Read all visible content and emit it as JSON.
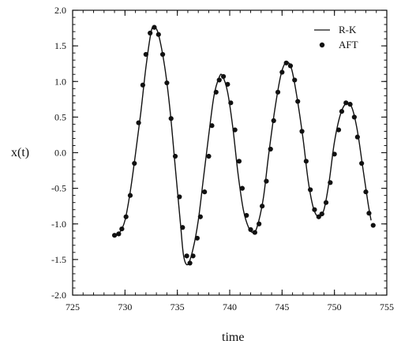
{
  "chart_data": {
    "type": "line",
    "title": "",
    "xlabel": "time",
    "ylabel": "x(t)",
    "xlim": [
      725,
      755
    ],
    "ylim": [
      -2.0,
      2.0
    ],
    "x_ticks": [
      725,
      730,
      735,
      740,
      745,
      750,
      755
    ],
    "y_ticks": [
      2.0,
      1.5,
      1.0,
      0.5,
      0.0,
      -0.5,
      -1.0,
      -1.5,
      -2.0
    ],
    "x_tick_labels": [
      "725",
      "730",
      "735",
      "740",
      "745",
      "750",
      "755"
    ],
    "y_tick_labels": [
      "2.0",
      "1.5",
      "1.0",
      "0.5",
      "0.0",
      "-0.5",
      "-1.0",
      "-1.5",
      "-2.0"
    ],
    "grid": false,
    "legend_position": "top-right",
    "series": [
      {
        "name": "R-K",
        "style": "line",
        "color": "#111111",
        "points": [
          [
            729.0,
            -1.16
          ],
          [
            729.5,
            -1.12
          ],
          [
            730.0,
            -0.95
          ],
          [
            730.5,
            -0.55
          ],
          [
            731.0,
            -0.02
          ],
          [
            731.5,
            0.55
          ],
          [
            732.0,
            1.2
          ],
          [
            732.5,
            1.7
          ],
          [
            732.8,
            1.76
          ],
          [
            733.2,
            1.66
          ],
          [
            733.8,
            1.2
          ],
          [
            734.3,
            0.6
          ],
          [
            734.8,
            -0.2
          ],
          [
            735.3,
            -1.0
          ],
          [
            735.6,
            -1.45
          ],
          [
            736.0,
            -1.57
          ],
          [
            736.5,
            -1.35
          ],
          [
            737.0,
            -0.95
          ],
          [
            737.5,
            -0.35
          ],
          [
            738.0,
            0.25
          ],
          [
            738.5,
            0.8
          ],
          [
            739.0,
            1.06
          ],
          [
            739.3,
            1.08
          ],
          [
            739.8,
            0.85
          ],
          [
            740.3,
            0.35
          ],
          [
            740.8,
            -0.3
          ],
          [
            741.3,
            -0.8
          ],
          [
            741.8,
            -1.05
          ],
          [
            742.2,
            -1.12
          ],
          [
            742.6,
            -1.05
          ],
          [
            743.2,
            -0.65
          ],
          [
            743.7,
            -0.05
          ],
          [
            744.3,
            0.6
          ],
          [
            744.9,
            1.1
          ],
          [
            745.4,
            1.27
          ],
          [
            745.9,
            1.18
          ],
          [
            746.4,
            0.8
          ],
          [
            747.0,
            0.2
          ],
          [
            747.5,
            -0.4
          ],
          [
            748.0,
            -0.78
          ],
          [
            748.5,
            -0.9
          ],
          [
            749.0,
            -0.8
          ],
          [
            749.5,
            -0.4
          ],
          [
            750.0,
            0.15
          ],
          [
            750.6,
            0.55
          ],
          [
            751.2,
            0.7
          ],
          [
            751.7,
            0.62
          ],
          [
            752.2,
            0.3
          ],
          [
            752.7,
            -0.2
          ],
          [
            753.2,
            -0.7
          ],
          [
            753.5,
            -0.95
          ]
        ]
      },
      {
        "name": "AFT",
        "style": "markers",
        "color": "#111111",
        "points": [
          [
            729.0,
            -1.16
          ],
          [
            729.4,
            -1.14
          ],
          [
            729.7,
            -1.07
          ],
          [
            730.1,
            -0.9
          ],
          [
            730.5,
            -0.6
          ],
          [
            730.9,
            -0.15
          ],
          [
            731.3,
            0.42
          ],
          [
            731.7,
            0.95
          ],
          [
            732.0,
            1.38
          ],
          [
            732.4,
            1.68
          ],
          [
            732.8,
            1.76
          ],
          [
            733.2,
            1.66
          ],
          [
            733.6,
            1.38
          ],
          [
            734.0,
            0.98
          ],
          [
            734.4,
            0.48
          ],
          [
            734.8,
            -0.05
          ],
          [
            735.2,
            -0.62
          ],
          [
            735.5,
            -1.05
          ],
          [
            735.9,
            -1.45
          ],
          [
            736.2,
            -1.55
          ],
          [
            736.5,
            -1.45
          ],
          [
            736.9,
            -1.2
          ],
          [
            737.2,
            -0.9
          ],
          [
            737.6,
            -0.55
          ],
          [
            738.0,
            -0.05
          ],
          [
            738.3,
            0.38
          ],
          [
            738.7,
            0.85
          ],
          [
            739.0,
            1.02
          ],
          [
            739.4,
            1.07
          ],
          [
            739.8,
            0.96
          ],
          [
            740.1,
            0.7
          ],
          [
            740.5,
            0.32
          ],
          [
            740.9,
            -0.12
          ],
          [
            741.2,
            -0.5
          ],
          [
            741.6,
            -0.88
          ],
          [
            742.0,
            -1.08
          ],
          [
            742.4,
            -1.12
          ],
          [
            742.8,
            -1.0
          ],
          [
            743.1,
            -0.75
          ],
          [
            743.5,
            -0.4
          ],
          [
            743.9,
            0.05
          ],
          [
            744.2,
            0.45
          ],
          [
            744.6,
            0.85
          ],
          [
            745.0,
            1.13
          ],
          [
            745.4,
            1.26
          ],
          [
            745.8,
            1.22
          ],
          [
            746.2,
            1.02
          ],
          [
            746.5,
            0.72
          ],
          [
            746.9,
            0.3
          ],
          [
            747.3,
            -0.12
          ],
          [
            747.7,
            -0.52
          ],
          [
            748.1,
            -0.8
          ],
          [
            748.5,
            -0.9
          ],
          [
            748.8,
            -0.86
          ],
          [
            749.2,
            -0.7
          ],
          [
            749.6,
            -0.42
          ],
          [
            750.0,
            -0.02
          ],
          [
            750.4,
            0.32
          ],
          [
            750.7,
            0.58
          ],
          [
            751.1,
            0.7
          ],
          [
            751.5,
            0.68
          ],
          [
            751.9,
            0.5
          ],
          [
            752.2,
            0.22
          ],
          [
            752.6,
            -0.15
          ],
          [
            753.0,
            -0.55
          ],
          [
            753.3,
            -0.85
          ],
          [
            753.7,
            -1.02
          ]
        ]
      }
    ]
  }
}
